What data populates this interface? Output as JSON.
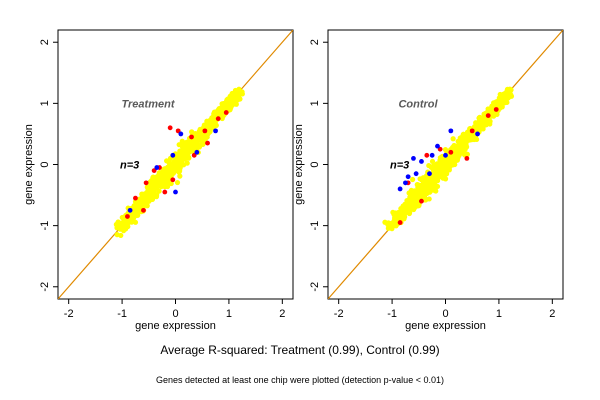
{
  "chart_data": [
    {
      "type": "scatter",
      "title": "Treatment",
      "annotation": "n=3",
      "xlabel": "gene expression",
      "ylabel": "gene expression",
      "xlim": [
        -2.2,
        2.2
      ],
      "ylim": [
        -2.2,
        2.2
      ],
      "xticks": [
        -2,
        -1,
        0,
        1,
        2
      ],
      "yticks": [
        -2,
        -1,
        0,
        1,
        2
      ],
      "reference_line": "y = x",
      "series": [
        {
          "color": "#ffff00",
          "cloud": {
            "x_range": [
              -1.05,
              1.2
            ],
            "spread": 0.11
          }
        },
        {
          "color": "#ff0000",
          "points": [
            [
              -0.9,
              -0.85
            ],
            [
              -0.75,
              -0.55
            ],
            [
              -0.55,
              -0.3
            ],
            [
              -0.4,
              -0.1
            ],
            [
              -0.3,
              -0.05
            ],
            [
              -0.1,
              0.6
            ],
            [
              0.05,
              0.55
            ],
            [
              -0.05,
              -0.25
            ],
            [
              0.3,
              0.45
            ],
            [
              0.55,
              0.55
            ],
            [
              0.8,
              0.75
            ],
            [
              0.95,
              0.85
            ],
            [
              0.35,
              0.15
            ],
            [
              -0.2,
              -0.45
            ],
            [
              0.6,
              0.35
            ],
            [
              -0.6,
              -0.75
            ]
          ]
        },
        {
          "color": "#0000ff",
          "points": [
            [
              -0.85,
              -0.75
            ],
            [
              -0.35,
              -0.05
            ],
            [
              0.0,
              -0.45
            ],
            [
              0.4,
              0.2
            ],
            [
              0.1,
              0.5
            ],
            [
              -0.05,
              0.15
            ],
            [
              0.75,
              0.55
            ]
          ]
        }
      ]
    },
    {
      "type": "scatter",
      "title": "Control",
      "annotation": "n=3",
      "xlabel": "gene expression",
      "ylabel": "gene expression",
      "xlim": [
        -2.2,
        2.2
      ],
      "ylim": [
        -2.2,
        2.2
      ],
      "xticks": [
        -2,
        -1,
        0,
        1,
        2
      ],
      "yticks": [
        -2,
        -1,
        0,
        1,
        2
      ],
      "reference_line": "y = x",
      "series": [
        {
          "color": "#ffff00",
          "cloud": {
            "x_range": [
              -1.05,
              1.2
            ],
            "spread": 0.11
          }
        },
        {
          "color": "#ff0000",
          "points": [
            [
              -0.85,
              -0.95
            ],
            [
              -0.7,
              -0.3
            ],
            [
              -0.35,
              0.15
            ],
            [
              -0.1,
              0.25
            ],
            [
              0.1,
              0.2
            ],
            [
              0.5,
              0.55
            ],
            [
              0.8,
              0.8
            ],
            [
              -0.45,
              -0.6
            ],
            [
              0.4,
              0.1
            ],
            [
              0.95,
              0.9
            ]
          ]
        },
        {
          "color": "#0000ff",
          "points": [
            [
              -0.85,
              -0.4
            ],
            [
              -0.75,
              -0.3
            ],
            [
              -0.7,
              -0.2
            ],
            [
              -0.55,
              -0.15
            ],
            [
              -0.45,
              0.05
            ],
            [
              -0.25,
              0.15
            ],
            [
              -0.15,
              0.3
            ],
            [
              0.0,
              0.15
            ],
            [
              -0.3,
              -0.15
            ],
            [
              -0.6,
              0.1
            ],
            [
              0.6,
              0.5
            ],
            [
              0.1,
              0.55
            ]
          ]
        }
      ]
    }
  ],
  "captions": {
    "main": "Average R-squared: Treatment (0.99), Control (0.99)",
    "footnote": "Genes detected at least one chip were plotted (detection p-value < 0.01)"
  }
}
